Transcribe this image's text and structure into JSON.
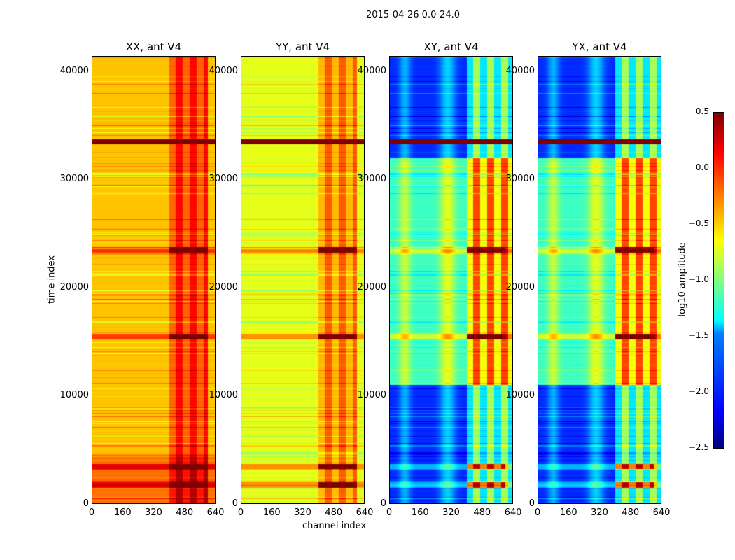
{
  "chart_data": {
    "type": "heatmap",
    "title": "2015-04-26 0.0-24.0",
    "xlabel": "channel index",
    "ylabel": "time index",
    "xlim": [
      0,
      640
    ],
    "ylim": [
      0,
      41400
    ],
    "xticks": [
      "0",
      "160",
      "320",
      "480",
      "640"
    ],
    "yticks": [
      "0",
      "10000",
      "20000",
      "30000",
      "40000"
    ],
    "panels": [
      {
        "title": "XX, ant V4",
        "base_level": -0.45,
        "hot_channels": [
          400,
          600
        ]
      },
      {
        "title": "YY, ant V4",
        "base_level": -0.7,
        "hot_channels": [
          400,
          600
        ]
      },
      {
        "title": "XY, ant V4",
        "base_level": -2.0,
        "hot_channels": [
          400,
          640
        ]
      },
      {
        "title": "YX, ant V4",
        "base_level": -2.0,
        "hot_channels": [
          400,
          640
        ]
      }
    ],
    "strong_bands_time": [
      1800,
      3500,
      15500,
      23500,
      33500
    ],
    "colorbar": {
      "label": "log10 amplitude",
      "range": [
        -2.5,
        0.5
      ],
      "ticks": [
        "0.5",
        "0.0",
        "−0.5",
        "−1.0",
        "−1.5",
        "−2.0",
        "−2.5"
      ],
      "colormap": "jet"
    }
  }
}
